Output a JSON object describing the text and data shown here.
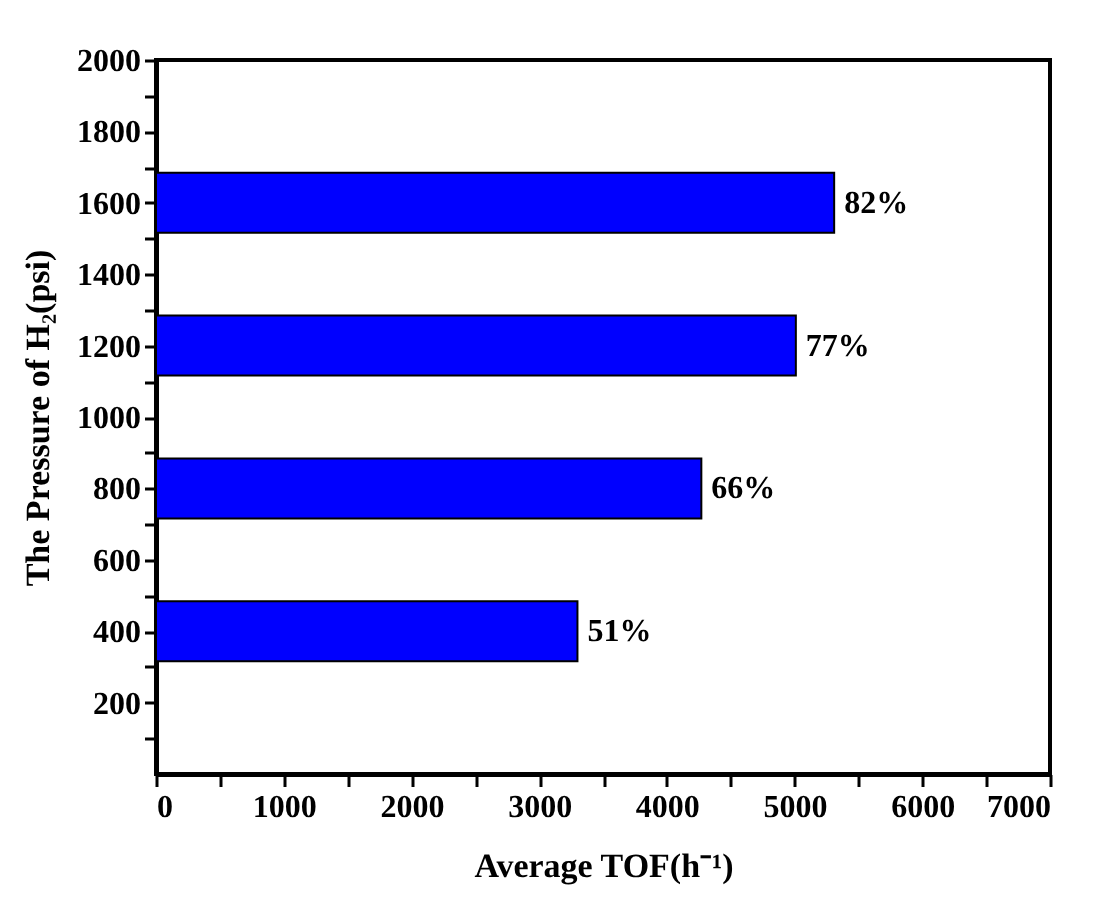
{
  "chart_data": {
    "type": "bar",
    "orientation": "horizontal",
    "xlabel": "Average TOF(h⁻¹)",
    "ylabel": "The Pressure of H₂(psi)",
    "x": [
      400,
      800,
      1200,
      1600
    ],
    "values": [
      3300,
      4270,
      5010,
      5310
    ],
    "annotations": [
      {
        "text": "51%",
        "x": 3300,
        "y": 400
      },
      {
        "text": "66%",
        "x": 4270,
        "y": 800
      },
      {
        "text": "77%",
        "x": 5010,
        "y": 1200
      },
      {
        "text": "82%",
        "x": 5310,
        "y": 1600
      }
    ],
    "color": "#0000ff",
    "xlim": [
      0,
      7000
    ],
    "xticks": [
      0,
      {
        "value": 500,
        "label": null
      },
      1000,
      {
        "value": 1500,
        "label": null
      },
      2000,
      {
        "value": 2500,
        "label": null
      },
      3000,
      {
        "value": 3500,
        "label": null
      },
      4000,
      {
        "value": 4500,
        "label": null
      },
      5000,
      {
        "value": 5500,
        "label": null
      },
      6000,
      {
        "value": 6500,
        "label": null
      },
      7000
    ],
    "ylim": [
      0,
      2000
    ],
    "yticks": [
      {
        "value": 100,
        "label": null
      },
      200,
      {
        "value": 300,
        "label": null
      },
      400,
      {
        "value": 500,
        "label": null
      },
      600,
      {
        "value": 700,
        "label": null
      },
      800,
      {
        "value": 900,
        "label": null
      },
      1000,
      {
        "value": 1100,
        "label": null
      },
      1200,
      {
        "value": 1300,
        "label": null
      },
      1400,
      {
        "value": 1500,
        "label": null
      },
      1600,
      {
        "value": 1700,
        "label": null
      },
      1800,
      {
        "value": 1900,
        "label": null
      },
      2000
    ],
    "grid": false
  }
}
